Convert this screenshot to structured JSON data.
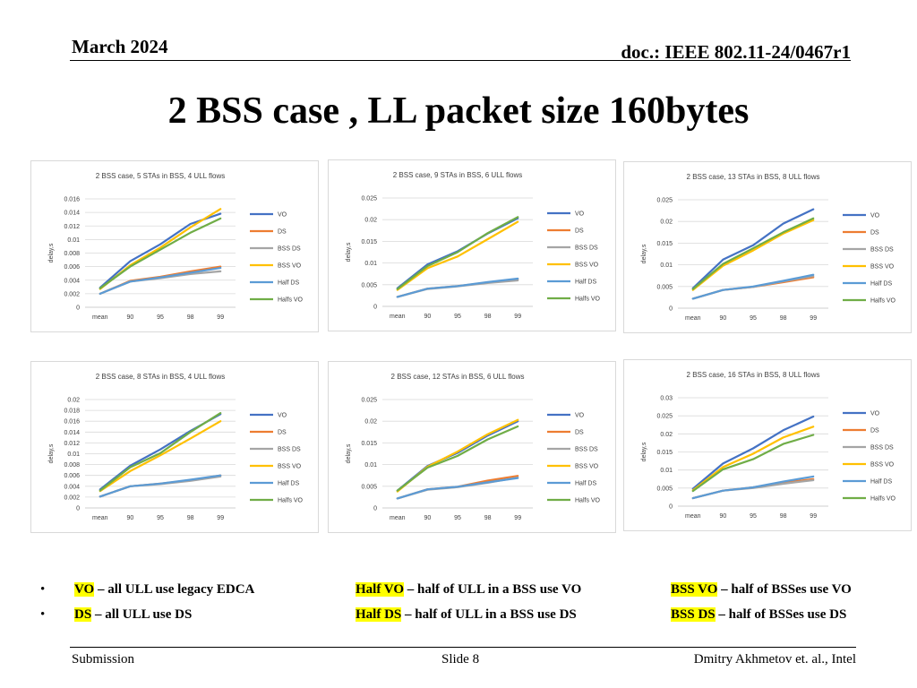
{
  "header": {
    "date": "March 2024",
    "doc": "doc.: IEEE 802.11-24/0467r1"
  },
  "title": "2 BSS case , LL packet size 160bytes",
  "series_styles": [
    {
      "name": "VO",
      "color": "#4472c4"
    },
    {
      "name": "DS",
      "color": "#ed7d31"
    },
    {
      "name": "BSS DS",
      "color": "#a5a5a5"
    },
    {
      "name": "BSS VO",
      "color": "#ffc000"
    },
    {
      "name": "Half DS",
      "color": "#5b9bd5"
    },
    {
      "name": "Halfs VO",
      "color": "#70ad47"
    }
  ],
  "chart_data": [
    {
      "type": "line",
      "title": "2 BSS case, 5 STAs in BSS, 4 ULL flows",
      "ylabel": "delay,s",
      "categories": [
        "mean",
        "90",
        "95",
        "98",
        "99"
      ],
      "ylim": [
        0,
        0.016
      ],
      "yticks": [
        "0",
        "0.002",
        "0.004",
        "0.006",
        "0.008",
        "0.01",
        "0.012",
        "0.014",
        "0.016"
      ],
      "series": [
        {
          "name": "VO",
          "values": [
            0.0029,
            0.0068,
            0.0093,
            0.0123,
            0.0138
          ]
        },
        {
          "name": "DS",
          "values": [
            0.002,
            0.0039,
            0.0045,
            0.0053,
            0.006
          ]
        },
        {
          "name": "BSS DS",
          "values": [
            0.002,
            0.0038,
            0.0043,
            0.0049,
            0.0053
          ]
        },
        {
          "name": "BSS VO",
          "values": [
            0.0027,
            0.0062,
            0.0088,
            0.0118,
            0.0145
          ]
        },
        {
          "name": "Half DS",
          "values": [
            0.002,
            0.0038,
            0.0044,
            0.0051,
            0.0058
          ]
        },
        {
          "name": "Halfs VO",
          "values": [
            0.0028,
            0.006,
            0.0085,
            0.011,
            0.0131
          ]
        }
      ]
    },
    {
      "type": "line",
      "title": "2 BSS case, 9 STAs in BSS, 6 ULL flows",
      "ylabel": "delay,s",
      "categories": [
        "mean",
        "90",
        "95",
        "98",
        "99"
      ],
      "ylim": [
        0,
        0.025
      ],
      "yticks": [
        "0",
        "0.005",
        "0.01",
        "0.015",
        "0.02",
        "0.025"
      ],
      "series": [
        {
          "name": "VO",
          "values": [
            0.0042,
            0.0097,
            0.0127,
            0.0168,
            0.0203
          ]
        },
        {
          "name": "DS",
          "values": [
            0.0022,
            0.0041,
            0.0047,
            0.0055,
            0.0063
          ]
        },
        {
          "name": "BSS DS",
          "values": [
            0.0022,
            0.004,
            0.0046,
            0.0054,
            0.006
          ]
        },
        {
          "name": "BSS VO",
          "values": [
            0.0038,
            0.0088,
            0.0115,
            0.0155,
            0.0195
          ]
        },
        {
          "name": "Half DS",
          "values": [
            0.0022,
            0.0041,
            0.0047,
            0.0056,
            0.0064
          ]
        },
        {
          "name": "Halfs VO",
          "values": [
            0.004,
            0.0093,
            0.0125,
            0.0169,
            0.0206
          ]
        }
      ]
    },
    {
      "type": "line",
      "title": "2 BSS case, 13 STAs in BSS, 8 ULL flows",
      "ylabel": "delay,s",
      "categories": [
        "mean",
        "90",
        "95",
        "98",
        "99"
      ],
      "ylim": [
        0,
        0.025
      ],
      "yticks": [
        "0",
        "0.005",
        "0.01",
        "0.015",
        "0.02",
        "0.025"
      ],
      "series": [
        {
          "name": "VO",
          "values": [
            0.0046,
            0.0112,
            0.0145,
            0.0195,
            0.0228
          ]
        },
        {
          "name": "DS",
          "values": [
            0.0022,
            0.0042,
            0.0049,
            0.006,
            0.0071
          ]
        },
        {
          "name": "BSS DS",
          "values": [
            0.0022,
            0.0042,
            0.0049,
            0.0062,
            0.0074
          ]
        },
        {
          "name": "BSS VO",
          "values": [
            0.0042,
            0.0098,
            0.0133,
            0.0172,
            0.0203
          ]
        },
        {
          "name": "Half DS",
          "values": [
            0.0022,
            0.0042,
            0.005,
            0.0063,
            0.0077
          ]
        },
        {
          "name": "Halfs VO",
          "values": [
            0.0044,
            0.0102,
            0.0138,
            0.0175,
            0.0207
          ]
        }
      ]
    },
    {
      "type": "line",
      "title": "2 BSS case, 8 STAs in BSS, 4 ULL flows",
      "ylabel": "delay,s",
      "categories": [
        "mean",
        "90",
        "95",
        "98",
        "99"
      ],
      "ylim": [
        0,
        0.02
      ],
      "yticks": [
        "0",
        "0.002",
        "0.004",
        "0.006",
        "0.008",
        "0.01",
        "0.012",
        "0.014",
        "0.016",
        "0.018",
        "0.02"
      ],
      "series": [
        {
          "name": "VO",
          "values": [
            0.0034,
            0.0078,
            0.0108,
            0.0142,
            0.0173
          ]
        },
        {
          "name": "DS",
          "values": [
            0.0021,
            0.004,
            0.0045,
            0.0051,
            0.006
          ]
        },
        {
          "name": "BSS DS",
          "values": [
            0.0021,
            0.004,
            0.0044,
            0.005,
            0.0058
          ]
        },
        {
          "name": "BSS VO",
          "values": [
            0.0031,
            0.0068,
            0.0097,
            0.0128,
            0.016
          ]
        },
        {
          "name": "Half DS",
          "values": [
            0.0021,
            0.004,
            0.0045,
            0.0052,
            0.006
          ]
        },
        {
          "name": "Halfs VO",
          "values": [
            0.0032,
            0.0075,
            0.0101,
            0.014,
            0.0175
          ]
        }
      ]
    },
    {
      "type": "line",
      "title": "2 BSS case, 12 STAs in BSS, 6 ULL flows",
      "ylabel": "delay,s",
      "categories": [
        "mean",
        "90",
        "95",
        "98",
        "99"
      ],
      "ylim": [
        0,
        0.025
      ],
      "yticks": [
        "0",
        "0.005",
        "0.01",
        "0.015",
        "0.02",
        "0.025"
      ],
      "series": [
        {
          "name": "VO",
          "values": [
            0.004,
            0.0097,
            0.0127,
            0.0167,
            0.02
          ]
        },
        {
          "name": "DS",
          "values": [
            0.0022,
            0.0043,
            0.0049,
            0.0063,
            0.0074
          ]
        },
        {
          "name": "BSS DS",
          "values": [
            0.0022,
            0.0042,
            0.0048,
            0.0058,
            0.007
          ]
        },
        {
          "name": "BSS VO",
          "values": [
            0.0038,
            0.0095,
            0.013,
            0.017,
            0.0203
          ]
        },
        {
          "name": "Half DS",
          "values": [
            0.0022,
            0.0043,
            0.0049,
            0.0059,
            0.0069
          ]
        },
        {
          "name": "Halfs VO",
          "values": [
            0.004,
            0.0093,
            0.012,
            0.0158,
            0.0188
          ]
        }
      ]
    },
    {
      "type": "line",
      "title": "2 BSS case, 16 STAs in BSS, 8 ULL flows",
      "ylabel": "delay,s",
      "categories": [
        "mean",
        "90",
        "95",
        "98",
        "99"
      ],
      "ylim": [
        0,
        0.03
      ],
      "yticks": [
        "0",
        "0.005",
        "0.01",
        "0.015",
        "0.02",
        "0.025",
        "0.03"
      ],
      "series": [
        {
          "name": "VO",
          "values": [
            0.0048,
            0.0118,
            0.016,
            0.021,
            0.0248
          ]
        },
        {
          "name": "DS",
          "values": [
            0.0022,
            0.0043,
            0.0052,
            0.0065,
            0.0075
          ]
        },
        {
          "name": "BSS DS",
          "values": [
            0.0022,
            0.0043,
            0.005,
            0.0062,
            0.0072
          ]
        },
        {
          "name": "BSS VO",
          "values": [
            0.0044,
            0.0108,
            0.0145,
            0.019,
            0.022
          ]
        },
        {
          "name": "Half DS",
          "values": [
            0.0022,
            0.0043,
            0.0052,
            0.0068,
            0.0082
          ]
        },
        {
          "name": "Halfs VO",
          "values": [
            0.0042,
            0.0102,
            0.013,
            0.0172,
            0.0197
          ]
        }
      ]
    }
  ],
  "legend_notes": {
    "vo_term": "VO",
    "vo_desc": " – all ULL use legacy EDCA",
    "ds_term": "DS",
    "ds_desc": " – all ULL use DS",
    "halfvo_term": "Half VO",
    "halfvo_desc": " – half of ULL in a BSS use VO",
    "halfds_term": "Half DS",
    "halfds_desc": " – half of ULL in a BSS use DS",
    "bssvo_term": "BSS VO",
    "bssvo_desc": " – half of BSSes use VO",
    "bssds_term": "BSS DS",
    "bssds_desc": " – half of BSSes use DS",
    "bullet": "•"
  },
  "footer": {
    "left": "Submission",
    "center": "Slide 8",
    "right": "Dmitry Akhmetov et. al., Intel"
  }
}
